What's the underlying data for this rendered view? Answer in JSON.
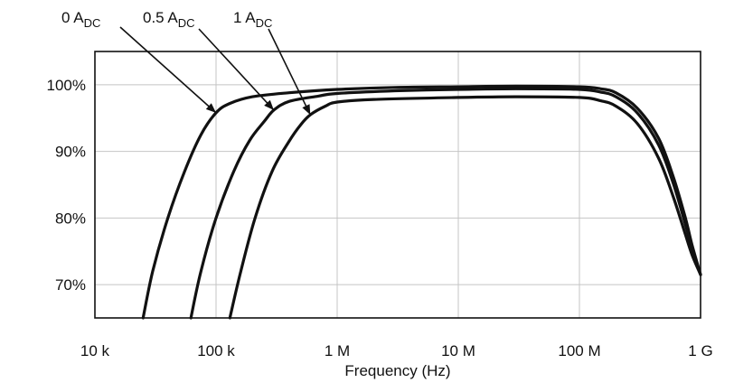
{
  "chart_data": {
    "type": "line",
    "title": "",
    "xlabel": "Frequency (Hz)",
    "ylabel": "",
    "x_scale": "log",
    "xlim": [
      10000,
      1000000000
    ],
    "ylim": [
      65,
      105
    ],
    "x_ticks": [
      {
        "value": 10000,
        "label": "10 k"
      },
      {
        "value": 100000,
        "label": "100 k"
      },
      {
        "value": 1000000,
        "label": "1 M"
      },
      {
        "value": 10000000,
        "label": "10 M"
      },
      {
        "value": 100000000,
        "label": "100 M"
      },
      {
        "value": 1000000000,
        "label": "1 G"
      }
    ],
    "y_ticks": [
      {
        "value": 70,
        "label": "70%"
      },
      {
        "value": 80,
        "label": "80%"
      },
      {
        "value": 90,
        "label": "90%"
      },
      {
        "value": 100,
        "label": "100%"
      }
    ],
    "grid": true,
    "legend": "none",
    "series": [
      {
        "name": "0 A",
        "name_subscript": "DC",
        "points": [
          [
            25000,
            65
          ],
          [
            30000,
            72
          ],
          [
            40000,
            80
          ],
          [
            55000,
            87
          ],
          [
            75000,
            92.5
          ],
          [
            100000,
            95.8
          ],
          [
            130000,
            97.2
          ],
          [
            200000,
            98.2
          ],
          [
            400000,
            98.8
          ],
          [
            1000000,
            99.3
          ],
          [
            3000000,
            99.6
          ],
          [
            10000000,
            99.7
          ],
          [
            30000000,
            99.8
          ],
          [
            100000000,
            99.7
          ],
          [
            150000000,
            99.4
          ],
          [
            200000000,
            98.8
          ],
          [
            300000000,
            96.5
          ],
          [
            450000000,
            92
          ],
          [
            600000000,
            86
          ],
          [
            750000000,
            80
          ],
          [
            850000000,
            76
          ],
          [
            1000000000,
            71.5
          ]
        ]
      },
      {
        "name": "0.5 A",
        "name_subscript": "DC",
        "points": [
          [
            62000,
            65
          ],
          [
            75000,
            72
          ],
          [
            100000,
            80
          ],
          [
            140000,
            87
          ],
          [
            190000,
            91.7
          ],
          [
            250000,
            94.5
          ],
          [
            300000,
            96.2
          ],
          [
            400000,
            97.5
          ],
          [
            700000,
            98.3
          ],
          [
            1000000,
            98.7
          ],
          [
            3000000,
            99.1
          ],
          [
            10000000,
            99.3
          ],
          [
            30000000,
            99.4
          ],
          [
            100000000,
            99.3
          ],
          [
            150000000,
            98.9
          ],
          [
            200000000,
            98.2
          ],
          [
            300000000,
            95.8
          ],
          [
            450000000,
            91
          ],
          [
            600000000,
            85
          ],
          [
            750000000,
            79
          ],
          [
            850000000,
            75.5
          ],
          [
            1000000000,
            71.5
          ]
        ]
      },
      {
        "name": "1 A",
        "name_subscript": "DC",
        "points": [
          [
            130000,
            65
          ],
          [
            160000,
            72
          ],
          [
            210000,
            80
          ],
          [
            290000,
            87
          ],
          [
            400000,
            91.5
          ],
          [
            500000,
            94
          ],
          [
            600000,
            95.5
          ],
          [
            800000,
            96.8
          ],
          [
            1000000,
            97.4
          ],
          [
            2000000,
            97.8
          ],
          [
            10000000,
            98.1
          ],
          [
            30000000,
            98.2
          ],
          [
            100000000,
            98.1
          ],
          [
            150000000,
            97.6
          ],
          [
            200000000,
            96.8
          ],
          [
            300000000,
            94.2
          ],
          [
            450000000,
            89
          ],
          [
            600000000,
            83
          ],
          [
            750000000,
            77.5
          ],
          [
            850000000,
            74.5
          ],
          [
            1000000000,
            71.5
          ]
        ]
      }
    ],
    "annotations": [
      {
        "series": 0,
        "text": "0 A",
        "subscript": "DC",
        "points_to": [
          100000,
          95.8
        ]
      },
      {
        "series": 1,
        "text": "0.5 A",
        "subscript": "DC",
        "points_to": [
          300000,
          96.2
        ]
      },
      {
        "series": 2,
        "text": "1 A",
        "subscript": "DC",
        "points_to": [
          600000,
          95.5
        ]
      }
    ]
  }
}
